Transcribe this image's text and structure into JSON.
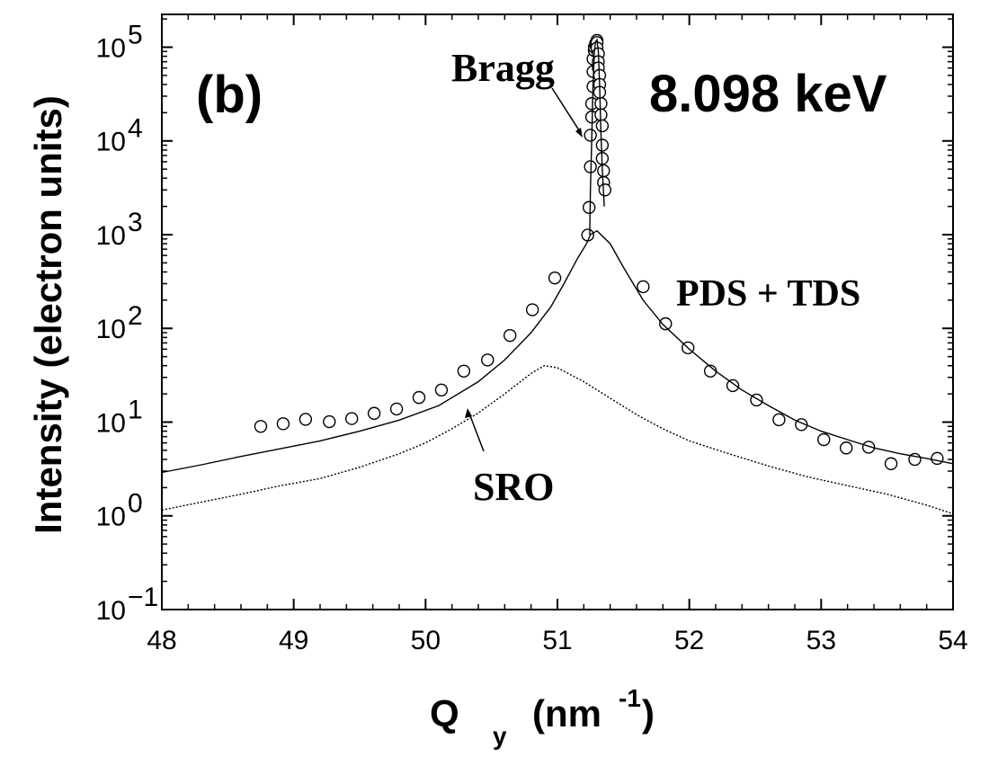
{
  "chart_data": {
    "type": "scatter",
    "panel_label": "(b)",
    "energy_label": "8.098 keV",
    "xlabel_main": "Q",
    "xlabel_sub": "y",
    "xlabel_unit_pre": "(nm",
    "xlabel_unit_exp": "-1",
    "xlabel_unit_post": ")",
    "ylabel": "Intensity (electron units)",
    "xlim": [
      48,
      54
    ],
    "ylim_log10": [
      -1,
      5.35
    ],
    "y_scale": "log",
    "x_ticks": [
      "48",
      "49",
      "50",
      "51",
      "52",
      "53",
      "54"
    ],
    "y_ticks": [
      {
        "base": "10",
        "exp": "5",
        "value": 5
      },
      {
        "base": "10",
        "exp": "4",
        "value": 4
      },
      {
        "base": "10",
        "exp": "3",
        "value": 3
      },
      {
        "base": "10",
        "exp": "2",
        "value": 2
      },
      {
        "base": "10",
        "exp": "1",
        "value": 1
      },
      {
        "base": "10",
        "exp": "0",
        "value": 0
      },
      {
        "base": "10",
        "exp": "−1",
        "value": -1
      }
    ],
    "annotations": {
      "bragg": "Bragg",
      "pds_tds": "PDS + TDS",
      "sro": "SRO"
    },
    "series": [
      {
        "kind": "measured",
        "points": [
          [
            48.75,
            9
          ],
          [
            48.92,
            9.6
          ],
          [
            49.09,
            10.7
          ],
          [
            49.27,
            10.1
          ],
          [
            49.44,
            10.9
          ],
          [
            49.61,
            12.4
          ],
          [
            49.78,
            13.8
          ],
          [
            49.95,
            18.3
          ],
          [
            50.12,
            22
          ],
          [
            50.29,
            35
          ],
          [
            50.47,
            46
          ],
          [
            50.64,
            84
          ],
          [
            50.81,
            158
          ],
          [
            50.98,
            345
          ],
          [
            51.65,
            278
          ],
          [
            51.82,
            112
          ],
          [
            51.99,
            62
          ],
          [
            52.16,
            35
          ],
          [
            52.33,
            24.5
          ],
          [
            52.51,
            17.2
          ],
          [
            52.68,
            10.6
          ],
          [
            52.85,
            9.4
          ],
          [
            53.02,
            6.5
          ],
          [
            53.19,
            5.3
          ],
          [
            53.36,
            5.4
          ],
          [
            53.53,
            3.6
          ],
          [
            53.71,
            4
          ],
          [
            53.88,
            4.1
          ],
          [
            51.23,
            990
          ],
          [
            51.24,
            1950
          ],
          [
            51.25,
            5300
          ],
          [
            51.25,
            11500
          ],
          [
            51.26,
            18000
          ],
          [
            51.26,
            25000
          ],
          [
            51.27,
            38000
          ],
          [
            51.27,
            55000
          ],
          [
            51.27,
            75000
          ],
          [
            51.28,
            92000
          ],
          [
            51.28,
            100000
          ],
          [
            51.29,
            105000
          ],
          [
            51.29,
            110000
          ],
          [
            51.3,
            118000
          ],
          [
            51.3,
            112000
          ],
          [
            51.3,
            98000
          ],
          [
            51.31,
            85000
          ],
          [
            51.31,
            70000
          ],
          [
            51.31,
            60000
          ],
          [
            51.32,
            50000
          ],
          [
            51.32,
            40000
          ],
          [
            51.32,
            33000
          ],
          [
            51.33,
            25000
          ],
          [
            51.33,
            19000
          ],
          [
            51.34,
            14500
          ],
          [
            51.34,
            9000
          ],
          [
            51.34,
            6500
          ],
          [
            51.35,
            4800
          ],
          [
            51.35,
            3600
          ],
          [
            51.36,
            3000
          ]
        ]
      },
      {
        "kind": "pds_tds_fit",
        "points": [
          [
            48,
            2.9
          ],
          [
            48.3,
            3.5
          ],
          [
            48.6,
            4.3
          ],
          [
            48.9,
            5.2
          ],
          [
            49.2,
            6.3
          ],
          [
            49.5,
            8
          ],
          [
            49.8,
            10.5
          ],
          [
            50.1,
            15
          ],
          [
            50.4,
            27
          ],
          [
            50.6,
            46
          ],
          [
            50.8,
            90
          ],
          [
            50.95,
            170
          ],
          [
            51.05,
            300
          ],
          [
            51.15,
            550
          ],
          [
            51.22,
            800
          ],
          [
            51.25,
            1000
          ],
          [
            51.3,
            1100
          ],
          [
            51.4,
            800
          ],
          [
            51.5,
            450
          ],
          [
            51.65,
            200
          ],
          [
            51.8,
            110
          ],
          [
            52,
            60
          ],
          [
            52.2,
            35
          ],
          [
            52.4,
            22
          ],
          [
            52.6,
            15
          ],
          [
            52.8,
            10.5
          ],
          [
            53,
            8
          ],
          [
            53.2,
            6.5
          ],
          [
            53.4,
            5.3
          ],
          [
            53.6,
            4.6
          ],
          [
            53.8,
            4.1
          ],
          [
            54,
            3.6
          ]
        ]
      },
      {
        "kind": "bragg_fit",
        "points": [
          [
            51.245,
            1000
          ],
          [
            51.25,
            3000
          ],
          [
            51.26,
            10000
          ],
          [
            51.27,
            40000
          ],
          [
            51.28,
            90000
          ],
          [
            51.29,
            115000
          ],
          [
            51.3,
            120000
          ],
          [
            51.31,
            90000
          ],
          [
            51.32,
            40000
          ],
          [
            51.33,
            12000
          ],
          [
            51.34,
            5000
          ],
          [
            51.355,
            2000
          ]
        ]
      },
      {
        "kind": "sro",
        "points": [
          [
            48,
            1.15
          ],
          [
            48.3,
            1.4
          ],
          [
            48.6,
            1.7
          ],
          [
            48.9,
            2.1
          ],
          [
            49.2,
            2.5
          ],
          [
            49.5,
            3.3
          ],
          [
            49.8,
            4.6
          ],
          [
            50,
            6
          ],
          [
            50.2,
            8.5
          ],
          [
            50.4,
            12.5
          ],
          [
            50.6,
            20
          ],
          [
            50.8,
            33
          ],
          [
            50.9,
            40
          ],
          [
            51,
            38
          ],
          [
            51.2,
            27
          ],
          [
            51.4,
            18
          ],
          [
            51.6,
            12
          ],
          [
            51.8,
            8.5
          ],
          [
            52,
            6.3
          ],
          [
            52.3,
            4.6
          ],
          [
            52.6,
            3.4
          ],
          [
            52.9,
            2.6
          ],
          [
            53.2,
            2.1
          ],
          [
            53.5,
            1.7
          ],
          [
            53.8,
            1.3
          ],
          [
            54,
            1.05
          ]
        ]
      }
    ]
  }
}
